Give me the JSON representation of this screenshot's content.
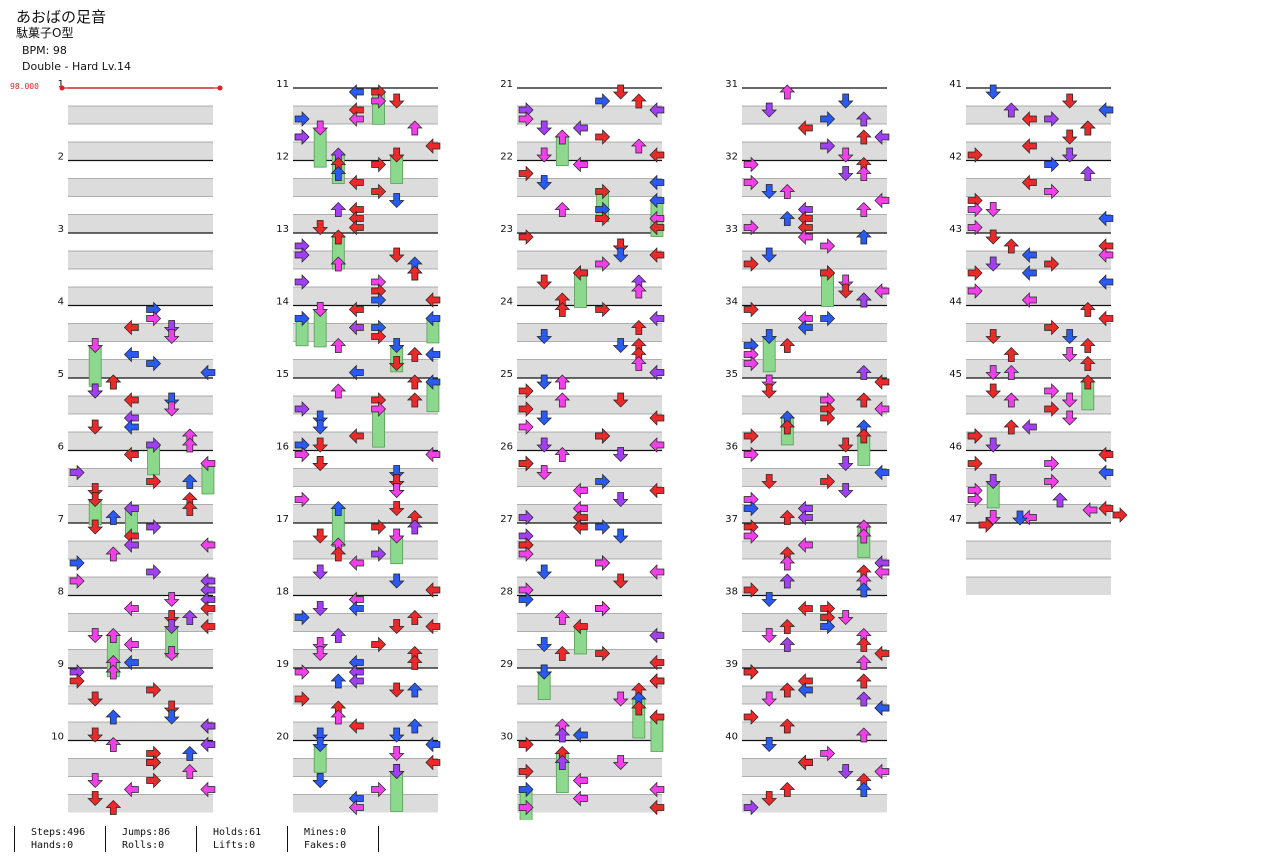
{
  "song": {
    "title": "あおばの足音",
    "artist": "駄菓子O型",
    "bpm": "BPM: 98",
    "difficulty": "Double - Hard Lv.14"
  },
  "bpm_change": "98.000",
  "chart_data": {
    "type": "table",
    "measure_labels": [
      "1",
      "2",
      "3",
      "4",
      "5",
      "6",
      "7",
      "8",
      "9",
      "10",
      "11",
      "12",
      "13",
      "14",
      "15",
      "16",
      "17",
      "18",
      "19",
      "20",
      "21",
      "22",
      "23",
      "24",
      "25",
      "26",
      "27",
      "28",
      "29",
      "30",
      "31",
      "32",
      "33",
      "34",
      "35",
      "36",
      "37",
      "38",
      "39",
      "40",
      "41",
      "42",
      "43",
      "44",
      "45",
      "46",
      "47"
    ],
    "note_colors": {
      "red": "#e82a2a",
      "blue": "#2a5af0",
      "purple": "#a040f0",
      "pink": "#f040e8",
      "hold": "#8cd88c"
    }
  },
  "stats": {
    "steps": "Steps:496",
    "hands": "Hands:0",
    "jumps": "Jumps:86",
    "rolls": "Rolls:0",
    "holds": "Holds:61",
    "lifts": "Lifts:0",
    "mines": "Mines:0",
    "fakes": "Fakes:0"
  }
}
